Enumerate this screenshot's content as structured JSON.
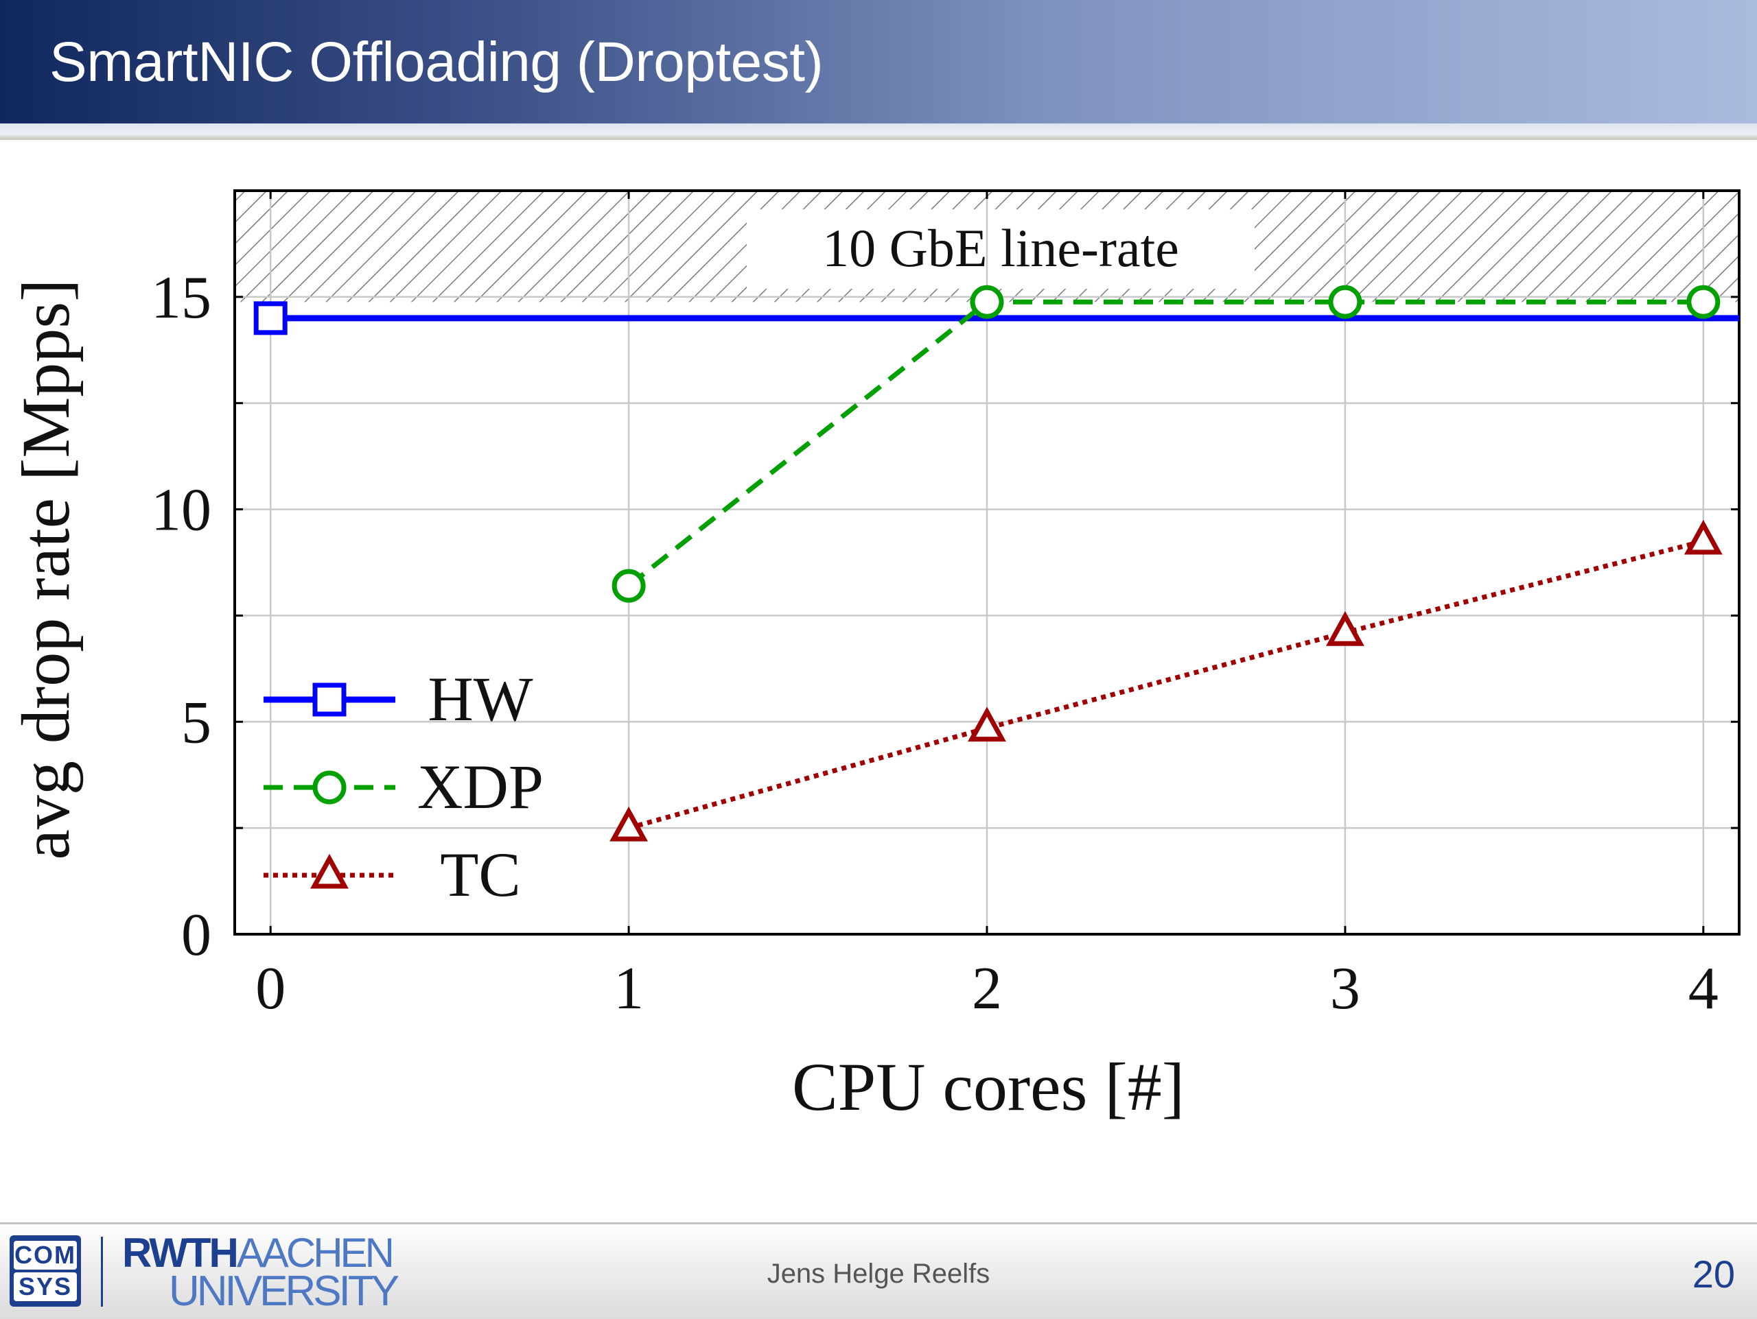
{
  "slide": {
    "title": "SmartNIC Offloading (Droptest)",
    "page_number": "20"
  },
  "footer": {
    "author": "Jens Helge Reelfs",
    "logo_comsys_top": "COM",
    "logo_comsys_bottom": "SYS",
    "logo_rwth": "RWTH",
    "logo_aachen": "AACHEN",
    "logo_university": "UNIVERSITY"
  },
  "colors": {
    "hw": "#0000ff",
    "xdp": "#00a000",
    "tc": "#a00000",
    "grid": "#c8c8c8",
    "hatch": "#7a7a7a"
  },
  "chart_data": {
    "type": "line",
    "xlabel": "CPU cores [#]",
    "ylabel": "avg drop rate [Mpps]",
    "xlim": [
      -0.1,
      4.1
    ],
    "ylim": [
      0,
      17.5
    ],
    "x_ticks": [
      0,
      1,
      2,
      3,
      4
    ],
    "y_ticks": [
      0,
      5,
      10,
      15
    ],
    "y_minor_ticks": [
      2.5,
      7.5,
      12.5
    ],
    "grid": true,
    "legend_position": "bottom-left",
    "annotation": {
      "label": "10 GbE line-rate",
      "y_from": 14.88,
      "y_to": 17.5
    },
    "series": [
      {
        "name": "HW",
        "style": "solid",
        "marker": "square",
        "x": [
          0
        ],
        "y": [
          14.5
        ],
        "extends_to_x": 4.1
      },
      {
        "name": "XDP",
        "style": "dashed",
        "marker": "circle",
        "x": [
          1,
          2,
          3,
          4
        ],
        "y": [
          8.2,
          14.88,
          14.88,
          14.88
        ]
      },
      {
        "name": "TC",
        "style": "dotted",
        "marker": "triangle",
        "x": [
          1,
          2,
          3,
          4
        ],
        "y": [
          2.5,
          4.85,
          7.1,
          9.25
        ]
      }
    ]
  }
}
